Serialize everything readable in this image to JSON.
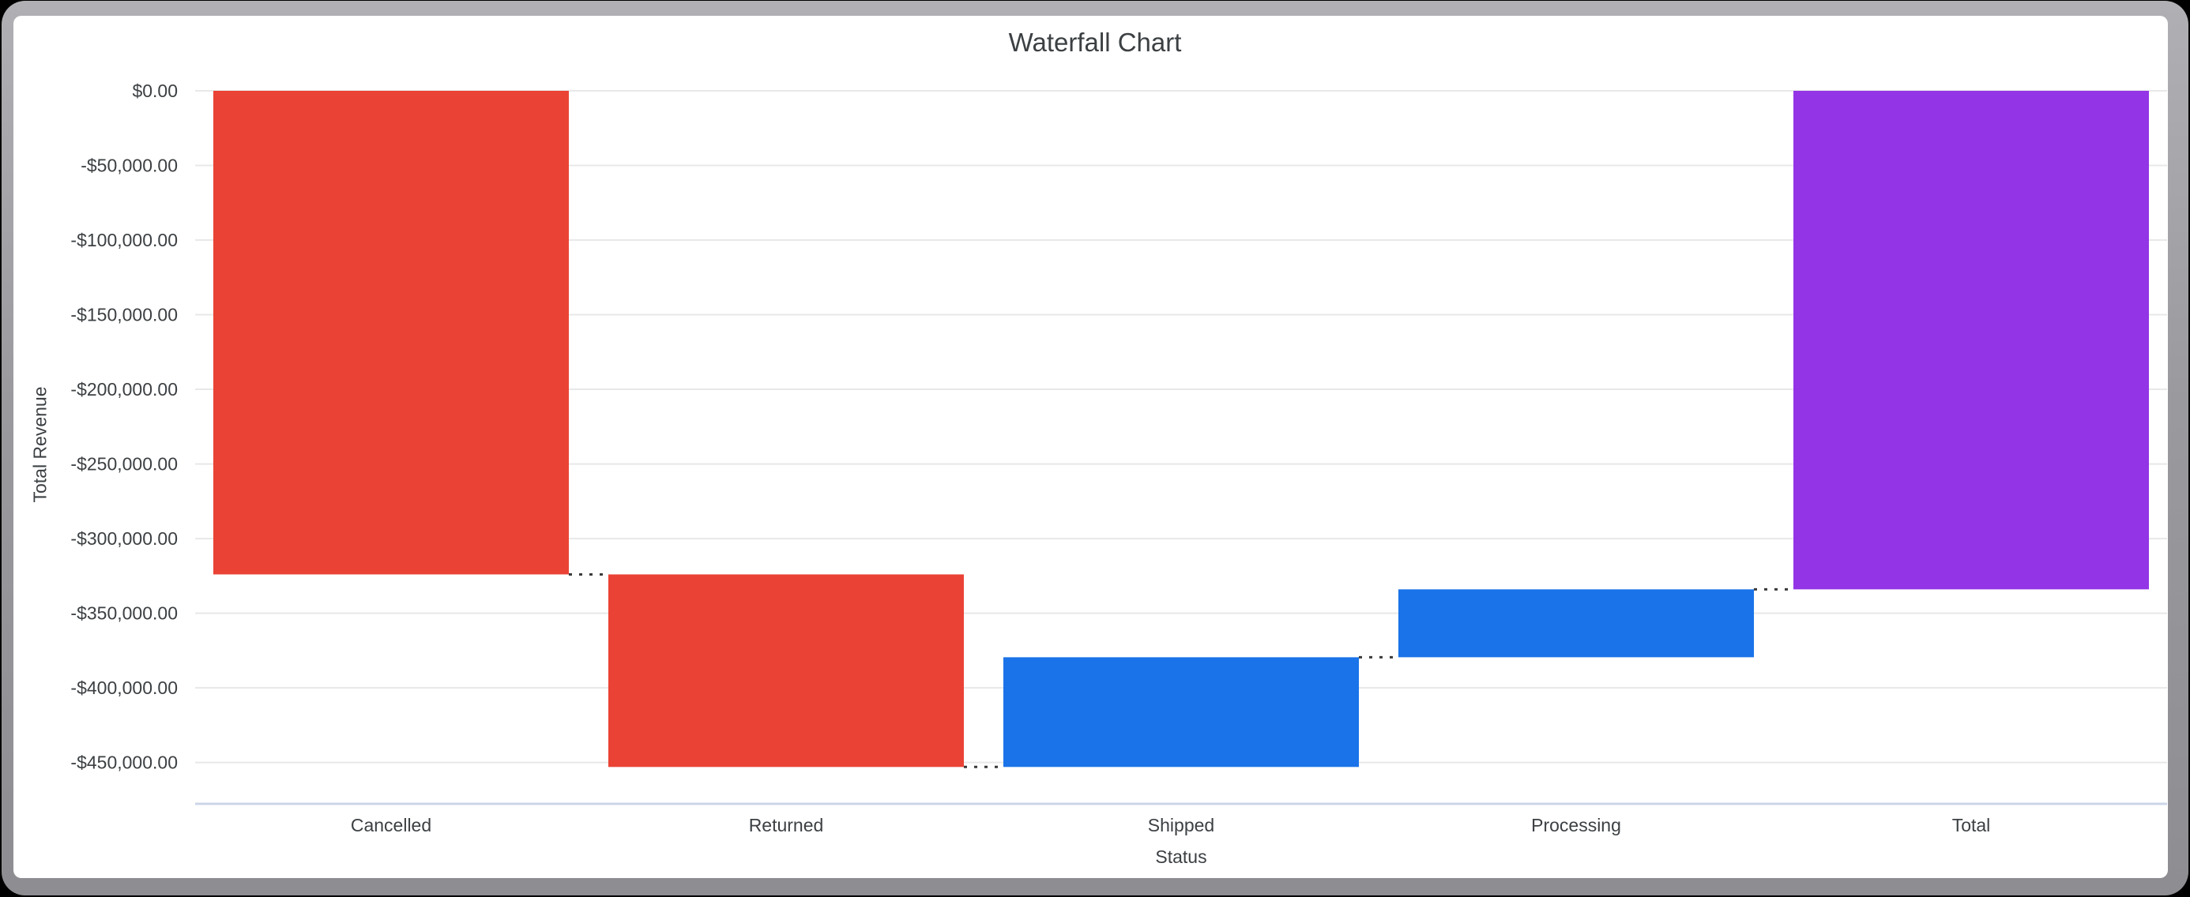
{
  "window": {
    "frame_color": "#9a9a9e",
    "corner_background": "#000000",
    "card_color": "#ffffff"
  },
  "chart_data": {
    "type": "bar",
    "subtype": "waterfall",
    "title": "Waterfall Chart",
    "xlabel": "Status",
    "ylabel": "Total Revenue",
    "categories": [
      "Cancelled",
      "Returned",
      "Shipped",
      "Processing",
      "Total"
    ],
    "bars": [
      {
        "label": "Cancelled",
        "delta": -324000,
        "start": 0,
        "end": -324000,
        "role": "negative"
      },
      {
        "label": "Returned",
        "delta": -129000,
        "start": -324000,
        "end": -453000,
        "role": "negative"
      },
      {
        "label": "Shipped",
        "delta": 73500,
        "start": -453000,
        "end": -379500,
        "role": "positive"
      },
      {
        "label": "Processing",
        "delta": 45500,
        "start": -379500,
        "end": -334000,
        "role": "positive"
      },
      {
        "label": "Total",
        "delta": -334000,
        "start": 0,
        "end": -334000,
        "role": "total"
      }
    ],
    "colors": {
      "negative": "#EA4335",
      "positive": "#1A73E8",
      "total": "#9334E6"
    },
    "ylim": [
      -477700,
      0
    ],
    "ytick_step": 50000,
    "ytick_labels": [
      "$0.00",
      "-$50,000.00",
      "-$100,000.00",
      "-$150,000.00",
      "-$200,000.00",
      "-$250,000.00",
      "-$300,000.00",
      "-$350,000.00",
      "-$400,000.00",
      "-$450,000.00"
    ],
    "grid_on": true,
    "grid_color": "#e8e8e8",
    "axis_line_color": "#ccd6e8",
    "connector_color": "#3a3a3a",
    "text_color": "#3c4043",
    "legend_position": "none"
  }
}
